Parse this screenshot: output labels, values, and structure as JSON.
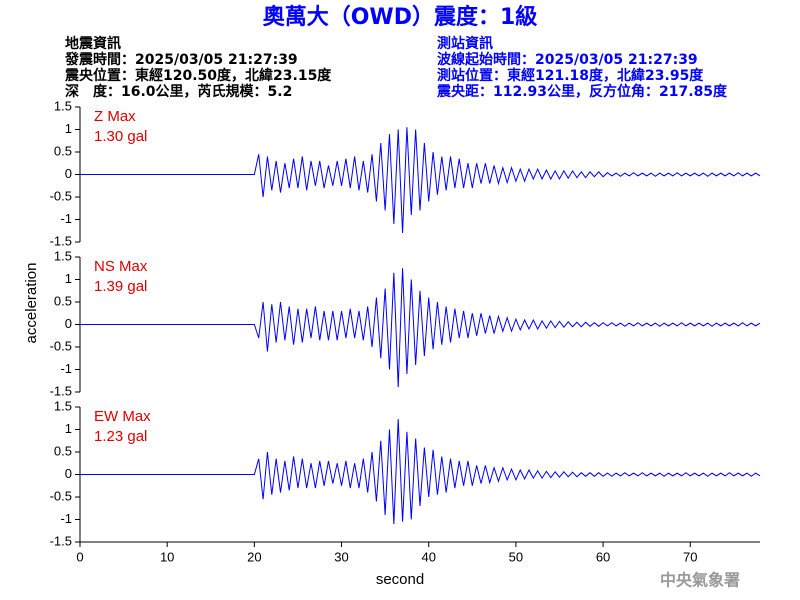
{
  "header": {
    "title": "奧萬大（OWD）震度：1級",
    "left": [
      "地震資訊",
      "發震時間：2025/03/05 21:27:39",
      "震央位置：東經120.50度，北緯23.15度",
      "深　度：16.0公里，芮氏規模：5.2"
    ],
    "right": [
      "測站資訊",
      "波線起始時間：2025/03/05 21:27:39",
      "測站位置：東經121.18度，北緯23.95度",
      "震央距：112.93公里，反方位角：217.85度"
    ],
    "footer": "中央氣象署"
  },
  "chart_data": {
    "type": "line",
    "xlabel": "second",
    "ylabel": "acceleration",
    "xlim": [
      0,
      78
    ],
    "xticks": [
      0,
      10,
      20,
      30,
      40,
      50,
      60,
      70
    ],
    "ylim": [
      -1.5,
      1.5
    ],
    "yticks": [
      1.5,
      1,
      0.5,
      0,
      -0.5,
      -1,
      -1.5
    ],
    "x": [
      0,
      20,
      20.5,
      21,
      21.5,
      22,
      22.5,
      23,
      23.5,
      24,
      24.5,
      25,
      25.5,
      26,
      26.5,
      27,
      27.5,
      28,
      28.5,
      29,
      29.5,
      30,
      30.5,
      31,
      31.5,
      32,
      32.5,
      33,
      33.5,
      34,
      34.5,
      35,
      35.5,
      36,
      36.5,
      37,
      37.5,
      38,
      38.5,
      39,
      39.5,
      40,
      40.5,
      41,
      41.5,
      42,
      42.5,
      43,
      43.5,
      44,
      44.5,
      45,
      45.5,
      46,
      46.5,
      47,
      47.5,
      48,
      48.5,
      49,
      49.5,
      50,
      50.5,
      51,
      51.5,
      52,
      52.5,
      53,
      53.5,
      54,
      54.5,
      55,
      55.5,
      56,
      56.5,
      57,
      57.5,
      58,
      58.5,
      59,
      59.5,
      60,
      60.5,
      61,
      61.5,
      62,
      62.5,
      63,
      63.5,
      64,
      64.5,
      65,
      65.5,
      66,
      66.5,
      67,
      67.5,
      68,
      68.5,
      69,
      69.5,
      70,
      70.5,
      71,
      71.5,
      72,
      72.5,
      73,
      73.5,
      74,
      74.5,
      75,
      75.5,
      76,
      76.5,
      77,
      77.5,
      78
    ],
    "series": [
      {
        "name": "Z Max",
        "peak_label": "1.30 gal",
        "color": "#0000ff",
        "values": [
          0,
          0,
          0.45,
          -0.5,
          0.4,
          -0.35,
          0.3,
          -0.4,
          0.25,
          -0.3,
          0.35,
          -0.3,
          0.4,
          -0.35,
          0.3,
          -0.25,
          0.3,
          -0.3,
          0.2,
          -0.25,
          0.3,
          -0.25,
          0.35,
          -0.3,
          0.4,
          -0.35,
          0.3,
          -0.4,
          0.45,
          -0.6,
          0.7,
          -0.8,
          0.9,
          -1.1,
          1.0,
          -1.3,
          1.05,
          -0.9,
          1.0,
          -0.8,
          0.7,
          -0.6,
          0.5,
          -0.45,
          0.4,
          -0.35,
          0.4,
          -0.3,
          0.35,
          -0.3,
          0.25,
          -0.3,
          0.25,
          -0.2,
          0.25,
          -0.2,
          0.2,
          -0.2,
          0.15,
          -0.18,
          0.15,
          -0.15,
          0.12,
          -0.15,
          0.12,
          -0.1,
          0.12,
          -0.1,
          0.1,
          -0.1,
          0.08,
          -0.1,
          0.08,
          -0.08,
          0.08,
          -0.07,
          0.06,
          -0.07,
          0.06,
          -0.05,
          0.06,
          -0.05,
          0.04,
          -0.03,
          0.03,
          -0.04,
          0.03,
          -0.03,
          0.04,
          -0.03,
          0.03,
          -0.03,
          0.03,
          -0.04,
          0.03,
          -0.03,
          0.03,
          -0.03,
          0.04,
          -0.03,
          0.03,
          -0.03,
          0.03,
          -0.03,
          0.03,
          -0.04,
          0.03,
          -0.03,
          0.03,
          -0.03,
          0.03,
          -0.03,
          0.04,
          -0.03,
          0.03,
          -0.03,
          0.03,
          -0.03
        ]
      },
      {
        "name": "NS Max",
        "peak_label": "1.39 gal",
        "color": "#0000ff",
        "values": [
          0,
          0,
          -0.3,
          0.5,
          -0.6,
          0.45,
          -0.4,
          0.5,
          -0.35,
          0.4,
          -0.45,
          0.35,
          -0.4,
          0.35,
          -0.3,
          0.4,
          -0.35,
          0.3,
          -0.35,
          0.3,
          -0.35,
          0.3,
          -0.3,
          0.35,
          -0.3,
          0.3,
          -0.35,
          0.4,
          -0.5,
          0.6,
          -0.75,
          0.8,
          -1.0,
          1.15,
          -1.39,
          1.25,
          -1.1,
          1.0,
          -0.9,
          0.75,
          -0.7,
          0.6,
          -0.55,
          0.5,
          -0.45,
          0.4,
          -0.4,
          0.35,
          -0.3,
          0.3,
          -0.3,
          0.25,
          -0.25,
          0.25,
          -0.2,
          0.2,
          -0.2,
          0.18,
          -0.15,
          0.15,
          -0.15,
          0.12,
          -0.12,
          0.1,
          -0.1,
          0.1,
          -0.1,
          0.08,
          -0.08,
          0.08,
          -0.07,
          0.07,
          -0.06,
          0.06,
          -0.05,
          0.05,
          -0.05,
          0.05,
          -0.04,
          0.04,
          -0.04,
          0.04,
          -0.03,
          0.04,
          -0.03,
          0.03,
          -0.04,
          0.03,
          -0.03,
          0.04,
          -0.03,
          0.03,
          -0.03,
          0.03,
          -0.04,
          0.03,
          -0.03,
          0.03,
          -0.03,
          0.04,
          -0.03,
          0.03,
          -0.03,
          0.03,
          -0.03,
          0.03,
          -0.04,
          0.03,
          -0.03,
          0.03,
          -0.03,
          0.03,
          -0.03,
          0.04,
          -0.03,
          0.03,
          -0.03,
          0.03
        ]
      },
      {
        "name": "EW Max",
        "peak_label": "1.23 gal",
        "color": "#0000ff",
        "values": [
          0,
          0,
          0.35,
          -0.55,
          0.5,
          -0.45,
          0.35,
          -0.4,
          0.3,
          -0.35,
          0.4,
          -0.3,
          0.35,
          -0.3,
          0.25,
          -0.3,
          0.3,
          -0.25,
          0.3,
          -0.2,
          0.25,
          -0.25,
          0.3,
          -0.3,
          0.25,
          -0.3,
          0.35,
          -0.4,
          0.5,
          -0.6,
          0.75,
          -0.9,
          1.0,
          -1.1,
          1.23,
          -1.05,
          0.95,
          -1.0,
          0.8,
          -0.7,
          0.6,
          -0.5,
          0.55,
          -0.45,
          0.4,
          -0.4,
          0.35,
          -0.3,
          0.3,
          -0.25,
          0.3,
          -0.25,
          0.2,
          -0.2,
          0.2,
          -0.18,
          0.15,
          -0.15,
          0.15,
          -0.12,
          0.12,
          -0.12,
          0.1,
          -0.1,
          0.1,
          -0.08,
          0.08,
          -0.08,
          0.07,
          -0.07,
          0.06,
          -0.06,
          0.06,
          -0.05,
          0.05,
          -0.05,
          0.04,
          -0.04,
          0.04,
          -0.04,
          0.04,
          -0.04,
          0.03,
          -0.04,
          0.03,
          -0.03,
          0.04,
          -0.03,
          0.03,
          -0.03,
          0.04,
          -0.03,
          0.03,
          -0.03,
          0.03,
          -0.04,
          0.03,
          -0.03,
          0.03,
          -0.03,
          0.04,
          -0.03,
          0.03,
          -0.03,
          0.03,
          -0.04,
          0.03,
          -0.03,
          0.03,
          -0.03,
          0.04,
          -0.03,
          0.03,
          -0.03,
          0.03,
          -0.04,
          0.03,
          -0.03
        ]
      }
    ]
  }
}
